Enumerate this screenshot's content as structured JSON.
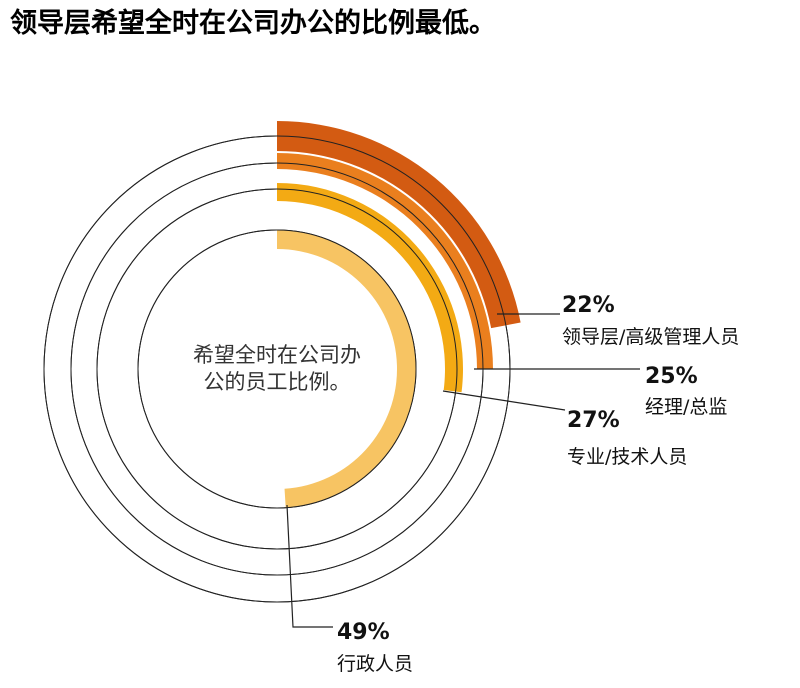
{
  "title": "领导层希望全时在公司办公的比例最低。",
  "center_label": [
    "希望全时在公司办",
    "公的员工比例。"
  ],
  "chart_data": {
    "type": "radial-bar",
    "title": "领导层希望全时在公司办公的比例最低。",
    "value_unit": "%",
    "max_value": 100,
    "series": [
      {
        "name": "领导层/高级管理人员",
        "value": 22,
        "label": "22%",
        "color": "#d35b12"
      },
      {
        "name": "经理/总监",
        "value": 25,
        "label": "25%",
        "color": "#ea7f1e"
      },
      {
        "name": "专业/技术人员",
        "value": 27,
        "label": "27%",
        "color": "#f3aa14"
      },
      {
        "name": "行政人员",
        "value": 49,
        "label": "49%",
        "color": "#f7c463"
      }
    ]
  }
}
